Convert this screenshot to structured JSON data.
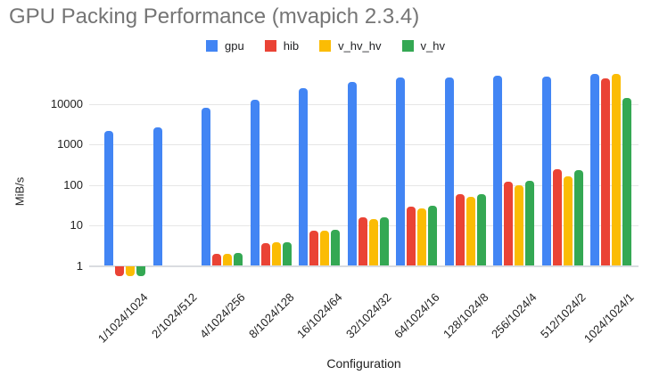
{
  "chart_data": {
    "type": "bar",
    "title": "GPU Packing Performance (mvapich 2.3.4)",
    "xlabel": "Configuration",
    "ylabel": "MiB/s",
    "y_scale": "log",
    "yticks": [
      1,
      10,
      100,
      1000,
      10000
    ],
    "ylim": [
      0.4,
      80000
    ],
    "grid": true,
    "legend_position": "top",
    "categories": [
      "1/1024/1024",
      "2/1024/512",
      "4/1024/256",
      "8/1024/128",
      "16/1024/64",
      "32/1024/32",
      "64/1024/16",
      "128/1024/8",
      "256/1024/4",
      "512/1024/2",
      "1024/1024/1"
    ],
    "series": [
      {
        "name": "gpu",
        "color": "#4285f4",
        "values": [
          2200,
          2700,
          8000,
          13000,
          24500,
          35000,
          45000,
          46000,
          51000,
          48000,
          55000
        ]
      },
      {
        "name": "hib",
        "color": "#ea4335",
        "values": [
          0.55,
          null,
          2.0,
          3.7,
          7.4,
          15.5,
          29,
          58,
          120,
          240,
          44000
        ]
      },
      {
        "name": "v_hv_hv",
        "color": "#fbbc04",
        "values": [
          0.55,
          null,
          2.0,
          3.8,
          7.4,
          14,
          27,
          52,
          100,
          165,
          56500
        ]
      },
      {
        "name": "v_hv",
        "color": "#34a853",
        "values": [
          0.57,
          null,
          2.1,
          3.9,
          7.8,
          15.7,
          31,
          60,
          125,
          230,
          14000
        ]
      }
    ]
  }
}
